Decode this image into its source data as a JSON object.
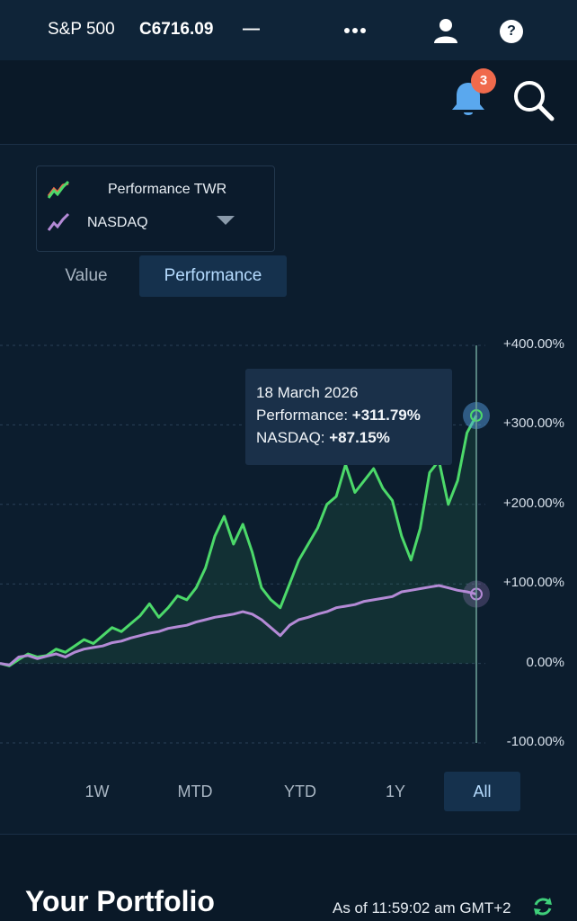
{
  "ticker": {
    "name": "S&P 500",
    "value": "C6716.09",
    "change": "—"
  },
  "header": {
    "notification_count": "3"
  },
  "legend": {
    "primary": "Performance TWR",
    "benchmark": "NASDAQ"
  },
  "view_tabs": {
    "value": "Value",
    "performance": "Performance"
  },
  "tooltip": {
    "date": "18 March 2026",
    "performance_label": "Performance: ",
    "performance_value": "+311.79%",
    "benchmark_label": "NASDAQ: ",
    "benchmark_value": "+87.15%"
  },
  "ranges": [
    "1W",
    "MTD",
    "YTD",
    "1Y",
    "All"
  ],
  "active_range": "All",
  "portfolio": {
    "title": "Your Portfolio",
    "as_of": "As of 11:59:02 am GMT+2"
  },
  "colors": {
    "performance": "#4cd96a",
    "benchmark": "#b48ad6",
    "accent": "#b6dcff",
    "badge": "#f06a4c"
  },
  "chart_data": {
    "type": "line",
    "y_ticks": [
      "+400.00%",
      "+300.00%",
      "+200.00%",
      "+100.00%",
      "0.00%",
      "-100.00%"
    ],
    "ylim": [
      -100,
      400
    ],
    "series": [
      {
        "name": "Performance",
        "values": [
          0,
          -3,
          5,
          12,
          8,
          10,
          18,
          14,
          22,
          30,
          25,
          35,
          45,
          40,
          50,
          60,
          75,
          58,
          70,
          85,
          80,
          95,
          120,
          160,
          185,
          150,
          175,
          140,
          95,
          80,
          70,
          100,
          130,
          150,
          170,
          200,
          210,
          250,
          215,
          230,
          245,
          220,
          205,
          160,
          130,
          170,
          240,
          255,
          200,
          230,
          290,
          311.79
        ]
      },
      {
        "name": "NASDAQ",
        "values": [
          0,
          -2,
          8,
          10,
          6,
          9,
          12,
          8,
          14,
          18,
          20,
          22,
          26,
          28,
          32,
          35,
          38,
          40,
          44,
          46,
          48,
          52,
          55,
          58,
          60,
          62,
          65,
          62,
          55,
          45,
          35,
          48,
          55,
          58,
          62,
          65,
          70,
          72,
          74,
          78,
          80,
          82,
          84,
          90,
          92,
          94,
          96,
          98,
          95,
          92,
          90,
          87.15
        ]
      }
    ]
  }
}
